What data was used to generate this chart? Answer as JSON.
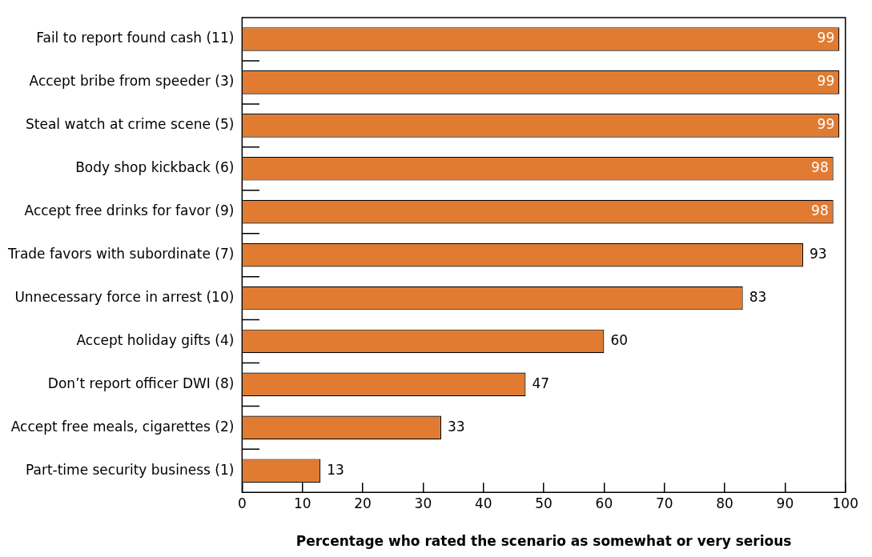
{
  "chart_data": {
    "type": "bar",
    "orientation": "horizontal",
    "xlabel": "Percentage who rated the scenario as somewhat or very serious",
    "categories": [
      "Fail to report found cash (11)",
      "Accept bribe from speeder (3)",
      "Steal watch at crime scene (5)",
      "Body shop kickback (6)",
      "Accept free drinks for favor (9)",
      "Trade favors with subordinate (7)",
      "Unnecessary force in arrest (10)",
      "Accept holiday gifts (4)",
      "Don’t report officer DWI (8)",
      "Accept free meals, cigarettes (2)",
      "Part-time security business (1)"
    ],
    "values": [
      99,
      99,
      99,
      98,
      98,
      93,
      83,
      60,
      47,
      33,
      13
    ],
    "color": "#e07b31",
    "xlim": [
      0,
      100
    ],
    "xticks": [
      0,
      10,
      20,
      30,
      40,
      50,
      60,
      70,
      80,
      90,
      100
    ],
    "grid": false,
    "legend": false,
    "data_labels": true
  }
}
